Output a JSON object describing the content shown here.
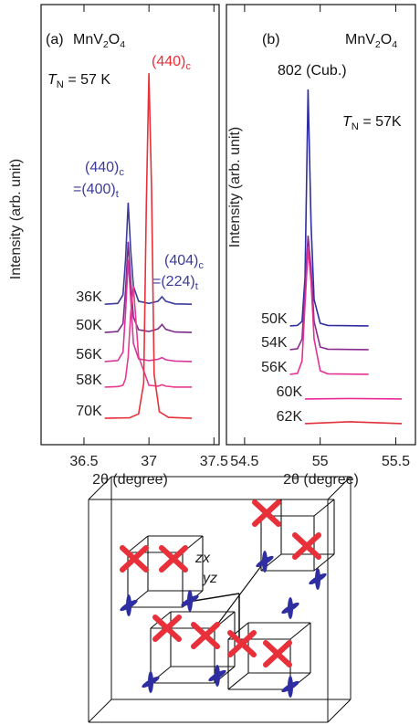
{
  "chart_data": [
    {
      "type": "line",
      "y_label": "Intensity (arb. unit)",
      "x_label": "2θ (degree)",
      "xlim": [
        36.17,
        37.54
      ],
      "xticks": [
        36.5,
        37,
        37.5
      ],
      "ylim": [
        0,
        100
      ],
      "annotations": [
        [
          {
            "text": "(a)"
          }
        ],
        [
          {
            "text": "MnV"
          },
          {
            "sub": "2"
          },
          {
            "text": "O"
          },
          {
            "sub": "4"
          }
        ],
        [
          {
            "italic": "T"
          },
          {
            "sub": "N"
          },
          {
            "text": " = 57 K"
          }
        ],
        [
          {
            "text": "(440)"
          },
          {
            "sub": "c"
          }
        ],
        [
          {
            "text": "(440)"
          },
          {
            "sub": "c"
          }
        ],
        [
          {
            "text": "=(400)"
          },
          {
            "sub": "t"
          }
        ],
        [
          {
            "text": "(404)"
          },
          {
            "sub": "c"
          }
        ],
        [
          {
            "text": "=(224)"
          },
          {
            "sub": "t"
          }
        ]
      ],
      "series": [
        {
          "name": "36K",
          "color": "#3b3b9c",
          "x": [
            36.66,
            36.76,
            36.8,
            36.82,
            36.84,
            36.86,
            36.88,
            36.92,
            37.0,
            37.07,
            37.1,
            37.13,
            37.2,
            37.33
          ],
          "values": [
            31.9,
            32.1,
            34,
            42,
            55.0,
            44,
            36,
            32.6,
            32.1,
            32.6,
            33.6,
            32.6,
            32.0,
            31.9
          ]
        },
        {
          "name": "50K",
          "color": "#7d2a8c",
          "x": [
            36.66,
            36.76,
            36.8,
            36.82,
            36.84,
            36.86,
            36.88,
            36.92,
            37.0,
            37.07,
            37.1,
            37.13,
            37.2,
            37.33
          ],
          "values": [
            25.5,
            25.7,
            27.5,
            35,
            46.1,
            37,
            29,
            26.1,
            25.7,
            26.3,
            27.3,
            26.2,
            25.6,
            25.5
          ]
        },
        {
          "name": "56K",
          "color": "#d8369a",
          "x": [
            36.66,
            36.76,
            36.8,
            36.82,
            36.84,
            36.86,
            36.88,
            36.92,
            37.0,
            37.07,
            37.1,
            37.13,
            37.2,
            37.33
          ],
          "values": [
            18.9,
            19.1,
            21,
            30,
            42.0,
            33,
            23,
            19.5,
            19.1,
            19.4,
            19.8,
            19.3,
            19.0,
            18.9
          ]
        },
        {
          "name": "58K",
          "color": "#ea3a8e",
          "x": [
            36.66,
            36.76,
            36.8,
            36.82,
            36.84,
            36.86,
            36.88,
            36.92,
            37.0,
            37.07,
            37.1,
            37.13,
            37.2,
            37.33
          ],
          "values": [
            13.1,
            13.2,
            13.5,
            15,
            20,
            30,
            36,
            20,
            13.5,
            13.3,
            13.6,
            13.3,
            13.1,
            13.1
          ]
        },
        {
          "name": "70K",
          "color": "#e8303a",
          "x": [
            36.66,
            36.85,
            36.92,
            36.96,
            36.98,
            37.0,
            37.02,
            37.04,
            37.08,
            37.15,
            37.33
          ],
          "values": [
            6.0,
            6.1,
            7,
            14,
            55,
            84.4,
            58,
            16,
            7.5,
            6.2,
            6.0
          ]
        }
      ]
    },
    {
      "type": "line",
      "y_label": "Intensity (arb. unit)",
      "x_label": "2θ (degree)",
      "xlim": [
        54.38,
        55.63
      ],
      "xticks": [
        54.5,
        55,
        55.5
      ],
      "ylim": [
        0,
        100
      ],
      "annotations": [
        [
          {
            "text": "(b)"
          }
        ],
        [
          {
            "text": "MnV"
          },
          {
            "sub": "2"
          },
          {
            "text": "O"
          },
          {
            "sub": "4"
          }
        ],
        [
          {
            "text": "802 (Cub.)"
          }
        ],
        [
          {
            "italic": "T"
          },
          {
            "sub": "N"
          },
          {
            "text": " = 57K"
          }
        ]
      ],
      "series": [
        {
          "name": "50K",
          "color": "#2e2ea2",
          "x": [
            54.8,
            54.85,
            54.88,
            54.9,
            54.92,
            54.94,
            54.96,
            55.0,
            55.05,
            55.32
          ],
          "values": [
            27.0,
            27.1,
            28,
            38,
            80.7,
            50,
            33,
            27.6,
            27.1,
            27.0
          ]
        },
        {
          "name": "54K",
          "color": "#8a2a90",
          "x": [
            54.8,
            54.85,
            54.88,
            54.9,
            54.92,
            54.94,
            54.96,
            55.0,
            55.05,
            55.32
          ],
          "values": [
            21.6,
            21.8,
            24,
            35,
            47.5,
            40,
            28,
            22.2,
            21.7,
            21.6
          ]
        },
        {
          "name": "56K",
          "color": "#e43292",
          "x": [
            54.8,
            54.85,
            54.88,
            54.9,
            54.92,
            54.94,
            54.96,
            55.0,
            55.05,
            55.32
          ],
          "values": [
            16.0,
            16.2,
            19,
            32,
            44.6,
            37,
            24,
            16.8,
            16.1,
            16.0
          ]
        },
        {
          "name": "60K",
          "color": "#ec2c94",
          "x": [
            54.9,
            55.2,
            55.54
          ],
          "values": [
            10.4,
            10.5,
            10.4
          ]
        },
        {
          "name": "62K",
          "color": "#e0303a",
          "x": [
            54.9,
            55.2,
            55.54
          ],
          "values": [
            4.8,
            5.2,
            4.8
          ]
        }
      ]
    }
  ],
  "diagram": {
    "labels": [
      "zx",
      "yz"
    ]
  }
}
